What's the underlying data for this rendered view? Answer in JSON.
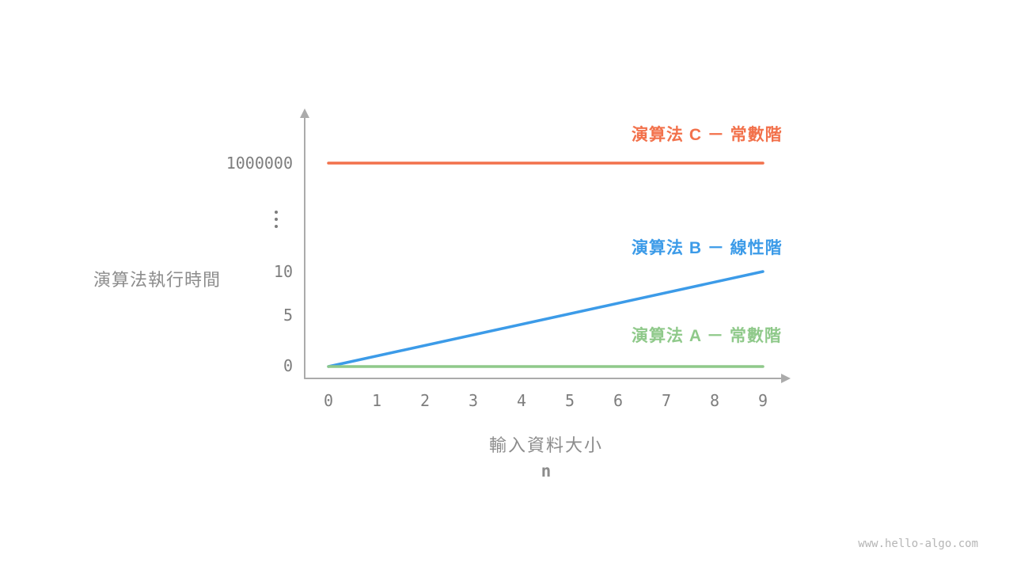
{
  "page": {
    "watermark": "www.hello-algo.com"
  },
  "chart_data": {
    "type": "line",
    "title": "",
    "xlabel": "輸入資料大小",
    "xlabel_sub": "n",
    "ylabel": "演算法執行時間",
    "x_ticks": [
      "0",
      "1",
      "2",
      "3",
      "4",
      "5",
      "6",
      "7",
      "8",
      "9"
    ],
    "y_ticks": [
      "0",
      "5",
      "10",
      "⋮",
      "1000000"
    ],
    "y_axis_break": true,
    "grid": false,
    "legend_position": "right-inline",
    "axis_color": "#ababab",
    "series": [
      {
        "name": "演算法 C － 常數階",
        "color": "#f2714b",
        "shape": "constant",
        "value": 1000000,
        "x_range": [
          0,
          9
        ]
      },
      {
        "name": "演算法 B － 線性階",
        "color": "#3c9be8",
        "shape": "linear",
        "x": [
          0,
          9
        ],
        "y": [
          0,
          10
        ]
      },
      {
        "name": "演算法 A － 常數階",
        "color": "#8fc98a",
        "shape": "constant",
        "value": 0,
        "x_range": [
          0,
          9
        ]
      }
    ]
  }
}
